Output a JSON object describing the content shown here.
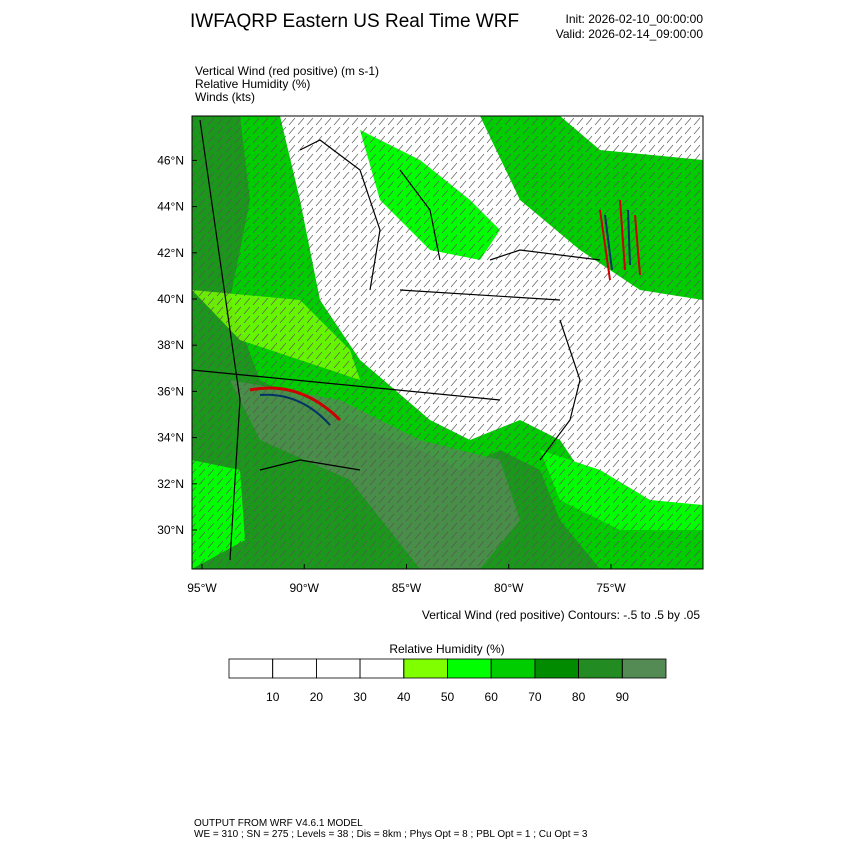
{
  "header": {
    "title": "IWFAQRP Eastern US Real Time WRF",
    "init": "Init: 2026-02-10_00:00:00",
    "valid": "Valid: 2026-02-14_09:00:00"
  },
  "fields": [
    "Vertical Wind (red positive)   (m s-1)",
    "Relative Humidity   (%)",
    "Winds   (kts)"
  ],
  "map": {
    "lat_ticks": [
      {
        "value": 30,
        "label": "30°N"
      },
      {
        "value": 32,
        "label": "32°N"
      },
      {
        "value": 34,
        "label": "34°N"
      },
      {
        "value": 36,
        "label": "36°N"
      },
      {
        "value": 38,
        "label": "38°N"
      },
      {
        "value": 40,
        "label": "40°N"
      },
      {
        "value": 42,
        "label": "42°N"
      },
      {
        "value": 44,
        "label": "44°N"
      },
      {
        "value": 46,
        "label": "46°N"
      }
    ],
    "lon_ticks": [
      {
        "value": -95,
        "label": "95°W"
      },
      {
        "value": -90,
        "label": "90°W"
      },
      {
        "value": -85,
        "label": "85°W"
      },
      {
        "value": -80,
        "label": "80°W"
      },
      {
        "value": -75,
        "label": "75°W"
      }
    ],
    "contour_note": "Vertical Wind (red positive) Contours: -.5 to .5 by .05"
  },
  "colorbar": {
    "title": "Relative Humidity  (%)",
    "ticks": [
      10,
      20,
      30,
      40,
      50,
      60,
      70,
      80,
      90
    ],
    "colors": [
      "#ffffff",
      "#ffffff",
      "#ffffff",
      "#ffffff",
      "#80ff00",
      "#00ff00",
      "#00cd00",
      "#008b00",
      "#228b22",
      "#548b54"
    ]
  },
  "footer": [
    "OUTPUT FROM WRF V4.6.1 MODEL",
    "WE = 310 ; SN = 275 ; Levels = 38 ; Dis = 8km ; Phys Opt = 8 ; PBL Opt = 1 ; Cu Opt = 3"
  ]
}
